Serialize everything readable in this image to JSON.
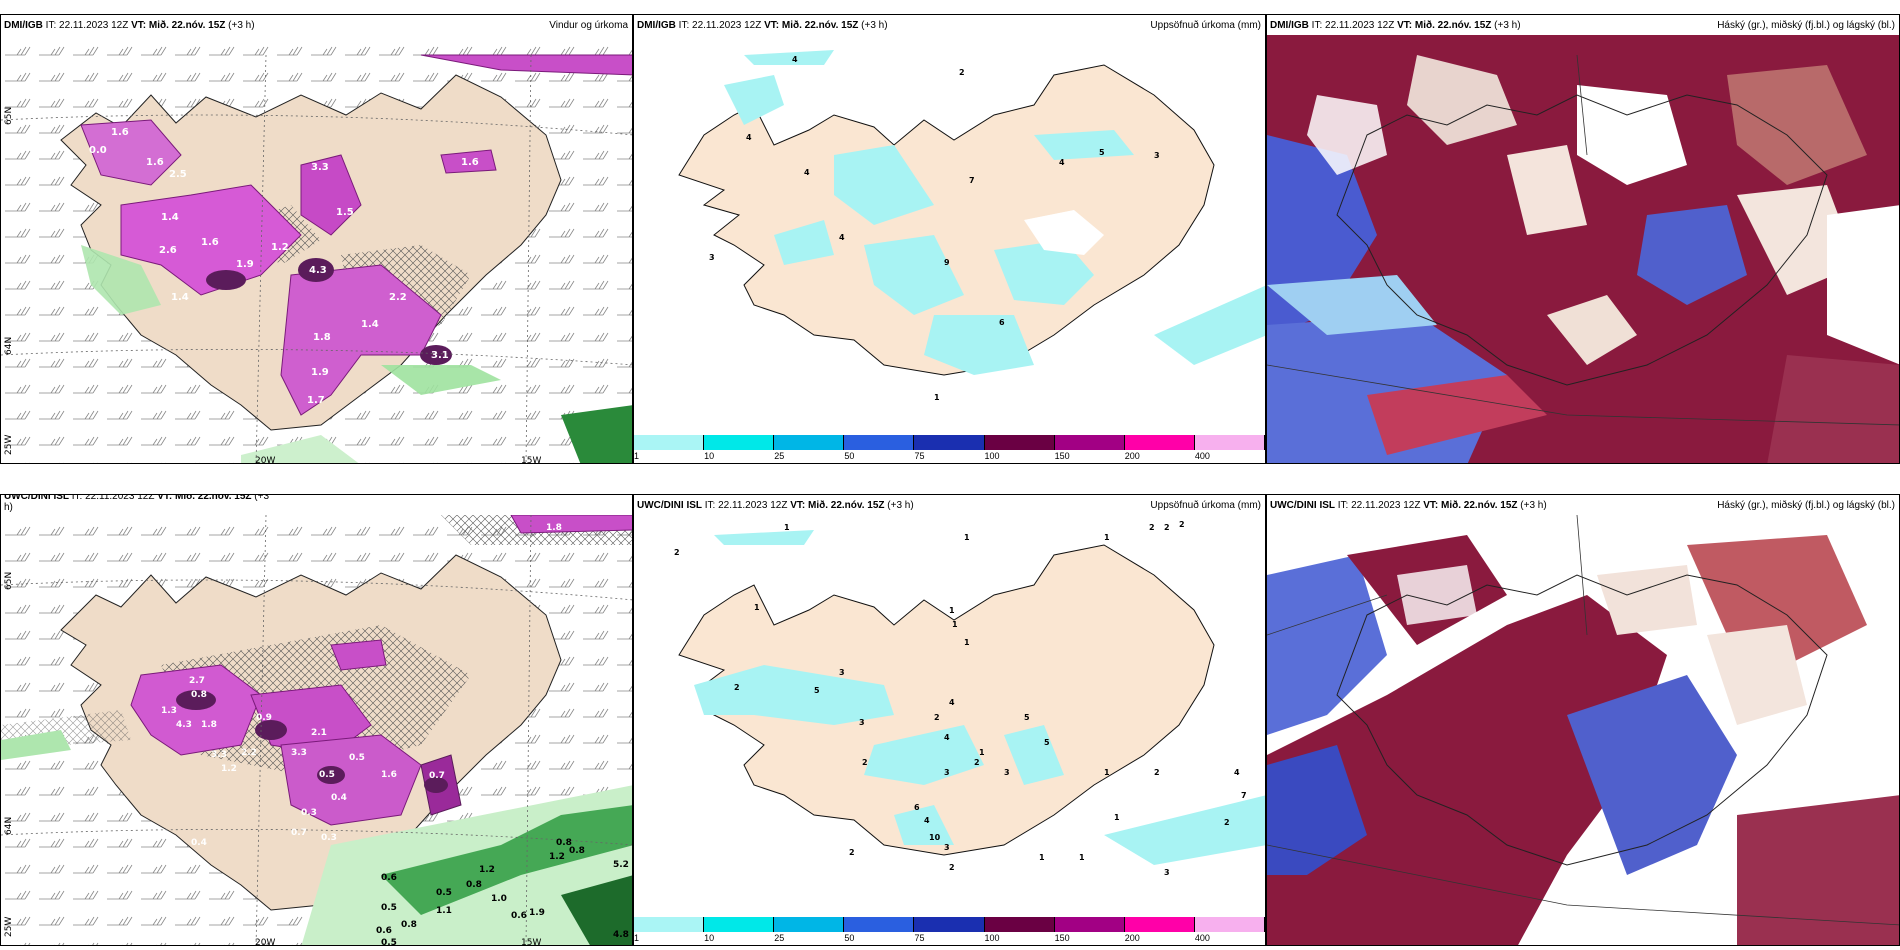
{
  "colorbar": {
    "colors": [
      "#aaf5f5",
      "#00e8e8",
      "#00b6e6",
      "#2a5fe0",
      "#1a2fb0",
      "#6a0043",
      "#a20084",
      "#ff00a8",
      "#f7b0ee"
    ],
    "ticks": [
      "1",
      "10",
      "25",
      "50",
      "75",
      "100",
      "150",
      "200",
      "400"
    ]
  },
  "panels": [
    {
      "id": "p1",
      "source": "DMI/IGB",
      "it": "IT: 22.11.2023 12Z",
      "vt_label": "VT:",
      "vt": "Mið. 22.nóv. 15Z",
      "offset": "(+3 h)",
      "right": "Vindur og úrkoma",
      "axis_labels": [
        "20W",
        "15W",
        "65N",
        "64N",
        "25W"
      ],
      "values": [
        "1.6",
        "2.5",
        "1.4",
        "2.6",
        "1.6",
        "1.9",
        "4.3",
        "1.8",
        "1.4",
        "1.9",
        "1.7",
        "3.1",
        "1.6",
        "1.5",
        "1.2",
        "0.0",
        "3.3",
        "2.2",
        "1.4",
        "1.6"
      ]
    },
    {
      "id": "p2",
      "source": "DMI/IGB",
      "it": "IT: 22.11.2023 12Z",
      "vt_label": "VT:",
      "vt": "Mið. 22.nóv. 15Z",
      "offset": "(+3 h)",
      "right": "Uppsöfnuð úrkoma (mm)",
      "values": [
        "4",
        "2",
        "4",
        "4",
        "7",
        "4",
        "5",
        "3",
        "4",
        "9",
        "6",
        "3",
        "1"
      ]
    },
    {
      "id": "p3",
      "source": "DMI/IGB",
      "it": "IT: 22.11.2023 12Z",
      "vt_label": "VT:",
      "vt": "Mið. 22.nóv. 15Z",
      "offset": "(+3 h)",
      "right": "Háský (gr.), miðský (fj.bl.) og lágský (bl.)"
    },
    {
      "id": "p4",
      "source": "UWC/DINI ISL",
      "it": "IT: 22.11.2023 12Z",
      "vt_label": "VT:",
      "vt": "Mið. 22.nóv. 15Z",
      "offset": "(+3",
      "offset_cont": "h)",
      "right": "",
      "axis_labels": [
        "20W",
        "15W",
        "65N",
        "64N",
        "25W"
      ],
      "values": [
        "1.8",
        "2.7",
        "0.8",
        "1.3",
        "4.3",
        "1.8",
        "0.9",
        "2.1",
        "3.3",
        "2.2",
        "1.2",
        "3.3",
        "0.5",
        "0.5",
        "1.6",
        "0.7",
        "0.4",
        "0.3",
        "0.7",
        "0.3",
        "0.4",
        "0.8",
        "0.6",
        "0.8",
        "0.5",
        "1.2",
        "0.5",
        "1.1",
        "1.0",
        "1.9",
        "0.6",
        "0.8",
        "0.5",
        "1.2",
        "0.8",
        "5.2",
        "0.6",
        "4.8"
      ]
    },
    {
      "id": "p5",
      "source": "UWC/DINI ISL",
      "it": "IT: 22.11.2023 12Z",
      "vt_label": "VT:",
      "vt": "Mið. 22.nóv. 15Z",
      "offset": "(+3 h)",
      "right": "Uppsöfnuð úrkoma (mm)",
      "values": [
        "2",
        "1",
        "1",
        "1",
        "2",
        "2",
        "2",
        "1",
        "1",
        "1",
        "1",
        "3",
        "5",
        "2",
        "4",
        "2",
        "4",
        "3",
        "5",
        "1",
        "2",
        "3",
        "2",
        "3",
        "5",
        "6",
        "4",
        "10",
        "3",
        "2",
        "2",
        "1",
        "2",
        "4",
        "7",
        "2",
        "1",
        "1",
        "3",
        "1"
      ]
    },
    {
      "id": "p6",
      "source": "UWC/DINI ISL",
      "it": "IT: 22.11.2023 12Z",
      "vt_label": "VT:",
      "vt": "Mið. 22.nóv. 15Z",
      "offset": "(+3 h)",
      "right": "Háský (gr.), miðský (fj.bl.) og lágský (bl.)"
    }
  ]
}
